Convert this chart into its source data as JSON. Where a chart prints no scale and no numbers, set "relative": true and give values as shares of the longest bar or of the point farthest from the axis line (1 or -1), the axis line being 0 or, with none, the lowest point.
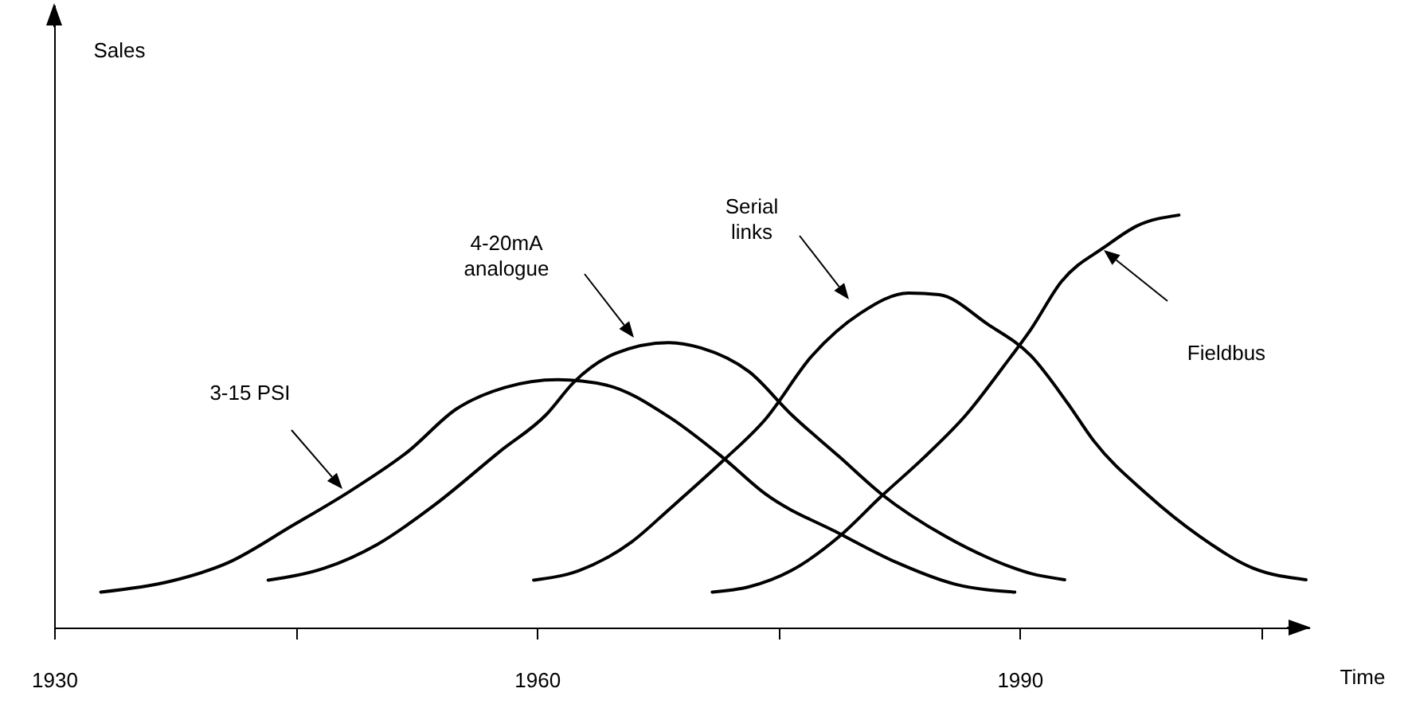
{
  "chart_data": {
    "type": "line",
    "relative": true,
    "xlabel": "Time",
    "xlim": [
      1930,
      2008
    ],
    "xticks": [
      1930,
      {
        "value": 1945,
        "label": null
      },
      1960,
      {
        "value": 1975,
        "label": null
      },
      1990,
      {
        "value": 2005,
        "label": null
      }
    ],
    "grid": false,
    "marker": "none",
    "line_style": "solid",
    "annotations": [
      "Sales",
      "3-15 PSI",
      "4-20mA\nanalogue",
      "Serial\nlinks",
      "Fieldbus"
    ],
    "series": [
      {
        "color": "#000000",
        "x": [
          1932.9,
          1937.2,
          1940.8,
          1944.8,
          1948.4,
          1952.0,
          1955.0,
          1958.0,
          1961.3,
          1964.3,
          1968.2,
          1971.5,
          1974.2,
          1978.8,
          1982.4,
          1986.0,
          1989.7
        ],
        "values": [
          0.086,
          0.112,
          0.157,
          0.247,
          0.331,
          0.427,
          0.53,
          0.582,
          0.601,
          0.588,
          0.511,
          0.414,
          0.324,
          0.228,
          0.157,
          0.105,
          0.086
        ]
      },
      {
        "color": "#000000",
        "x": [
          1943.3,
          1946.8,
          1950.1,
          1953.7,
          1957.7,
          1960.6,
          1962.3,
          1964.9,
          1968.2,
          1970.2,
          1973.2,
          1975.8,
          1978.8,
          1981.4,
          1985.4,
          1988.0,
          1990.7,
          1992.8
        ],
        "values": [
          0.115,
          0.144,
          0.202,
          0.299,
          0.427,
          0.517,
          0.595,
          0.665,
          0.691,
          0.678,
          0.62,
          0.517,
          0.414,
          0.324,
          0.221,
          0.17,
          0.131,
          0.116
        ]
      },
      {
        "color": "#000000",
        "x": [
          1959.8,
          1962.6,
          1965.9,
          1968.2,
          1971.5,
          1974.2,
          1977.1,
          1980.1,
          1983.1,
          1985.0,
          1988.0,
          1990.7,
          1993.0,
          1994.6,
          1997.9,
          2001.2,
          2004.5,
          2007.8
        ],
        "values": [
          0.115,
          0.138,
          0.208,
          0.286,
          0.402,
          0.505,
          0.659,
          0.762,
          0.811,
          0.807,
          0.736,
          0.659,
          0.543,
          0.453,
          0.324,
          0.221,
          0.144,
          0.116
        ]
      },
      {
        "color": "#000000",
        "x": [
          1970.9,
          1973.2,
          1975.8,
          1978.8,
          1981.4,
          1984.1,
          1986.7,
          1989.0,
          1990.7,
          1992.6,
          1995.3,
          1997.3,
          1999.9
        ],
        "values": [
          0.086,
          0.099,
          0.138,
          0.221,
          0.318,
          0.414,
          0.517,
          0.633,
          0.723,
          0.839,
          0.923,
          0.974,
          1.0
        ]
      }
    ]
  }
}
